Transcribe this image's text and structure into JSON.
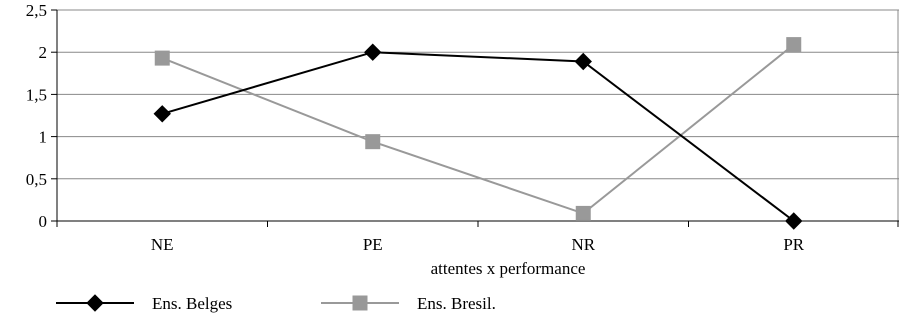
{
  "chart_data": {
    "type": "line",
    "title": "",
    "xlabel": "attentes x performance",
    "ylabel": "",
    "categories": [
      "NE",
      "PE",
      "NR",
      "PR"
    ],
    "ylim": [
      0,
      2.5
    ],
    "yticks": [
      "0",
      "0,5",
      "1",
      "1,5",
      "2",
      "2,5"
    ],
    "grid": true,
    "legend_position": "bottom-left",
    "series": [
      {
        "name": "Ens. Belges",
        "values": [
          1.27,
          2.0,
          1.89,
          0.0
        ],
        "color": "#000000",
        "marker": "diamond"
      },
      {
        "name": "Ens. Bresil.",
        "values": [
          1.93,
          0.94,
          0.09,
          2.09
        ],
        "color": "#999999",
        "marker": "square"
      }
    ]
  }
}
